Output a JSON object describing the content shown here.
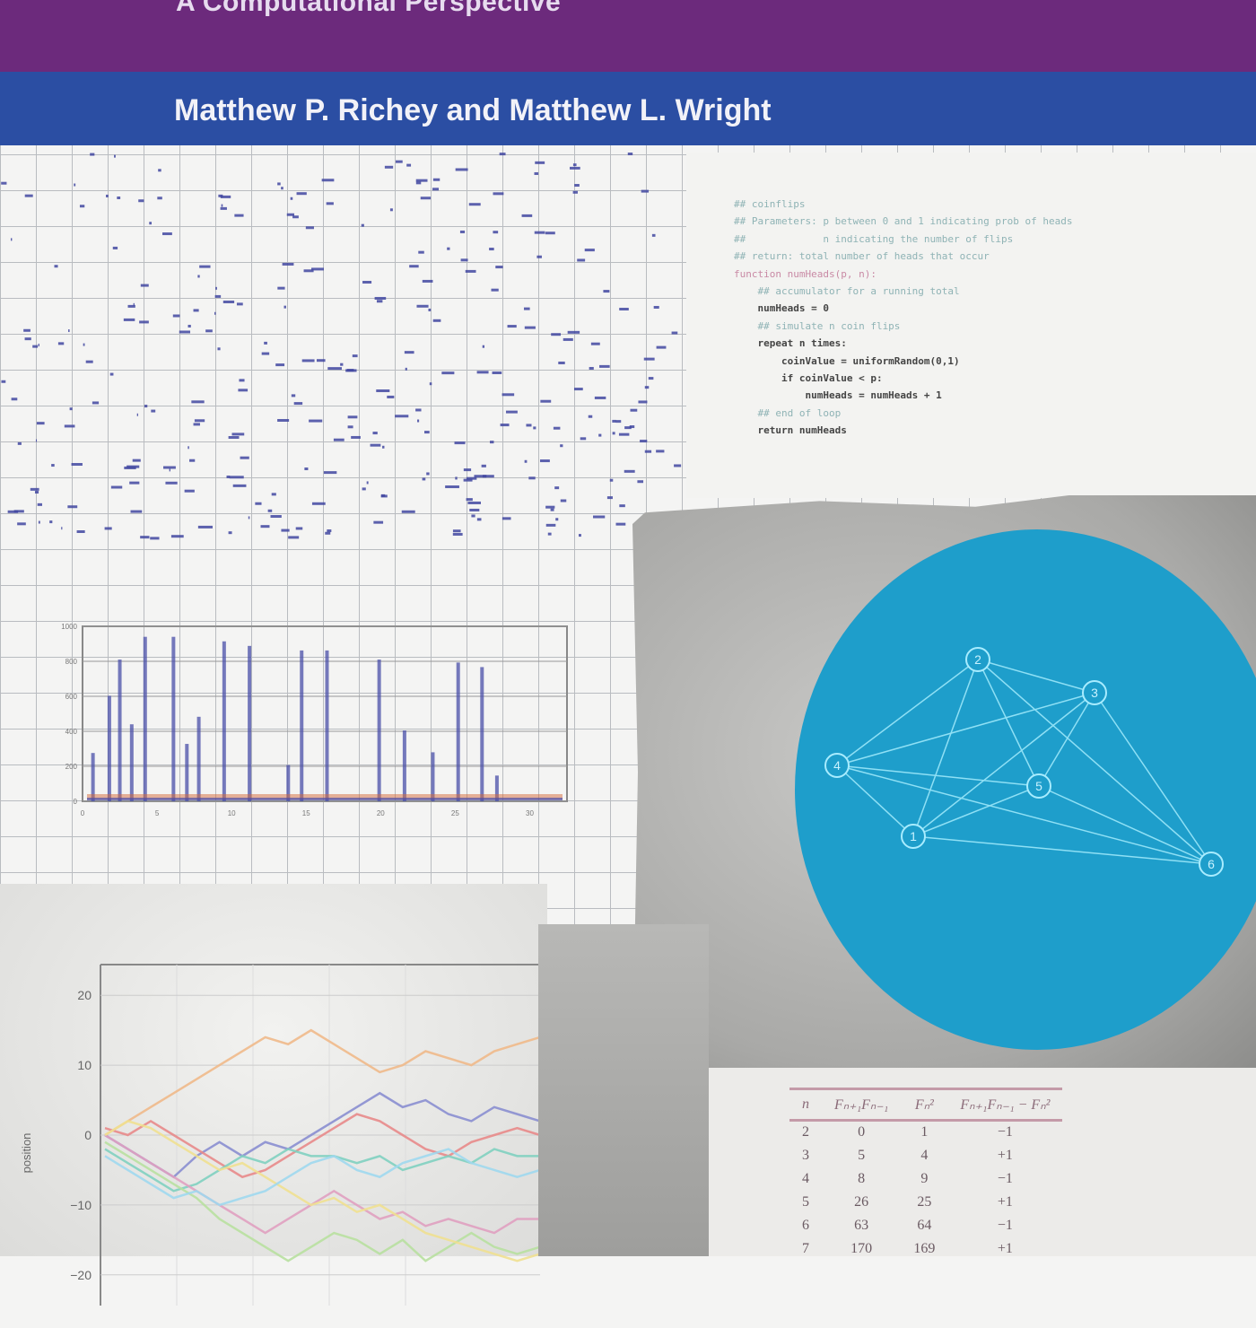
{
  "cover": {
    "subtitle": "A Computational Perspective",
    "authors": "Matthew P. Richey and Matthew L. Wright",
    "colors": {
      "title_band": "#6c2a7c",
      "author_band": "#2b4ea3",
      "circle": "#1e9ecb"
    }
  },
  "code": {
    "lines": [
      {
        "t": "## coinflips",
        "c": "cm"
      },
      {
        "t": "## Parameters: p between 0 and 1 indicating prob of heads",
        "c": "cm"
      },
      {
        "t": "##             n indicating the number of flips",
        "c": "cm"
      },
      {
        "t": "## return: total number of heads that occur",
        "c": "cm"
      },
      {
        "t": "function numHeads(p, n):",
        "c": "kw"
      },
      {
        "t": "    ## accumulator for a running total",
        "c": "cm"
      },
      {
        "t": "    numHeads = 0",
        "c": "bd"
      },
      {
        "t": "    ## simulate n coin flips",
        "c": "cm"
      },
      {
        "t": "    repeat n times:",
        "c": "bd"
      },
      {
        "t": "        coinValue = uniformRandom(0,1)",
        "c": "bd"
      },
      {
        "t": "        if coinValue < p:",
        "c": "bd"
      },
      {
        "t": "            numHeads = numHeads + 1",
        "c": "bd"
      },
      {
        "t": "    ## end of loop",
        "c": "cm"
      },
      {
        "t": "    return numHeads",
        "c": "bd"
      }
    ]
  },
  "graph": {
    "nodes": [
      {
        "id": "1"
      },
      {
        "id": "2"
      },
      {
        "id": "3"
      },
      {
        "id": "4"
      },
      {
        "id": "5"
      },
      {
        "id": "6"
      }
    ],
    "edges": [
      [
        "4",
        "2"
      ],
      [
        "4",
        "3"
      ],
      [
        "4",
        "5"
      ],
      [
        "4",
        "1"
      ],
      [
        "4",
        "6"
      ],
      [
        "2",
        "3"
      ],
      [
        "2",
        "5"
      ],
      [
        "2",
        "1"
      ],
      [
        "2",
        "6"
      ],
      [
        "3",
        "1"
      ],
      [
        "3",
        "5"
      ],
      [
        "5",
        "1"
      ],
      [
        "5",
        "6"
      ],
      [
        "1",
        "6"
      ],
      [
        "3",
        "6"
      ]
    ]
  },
  "table": {
    "headers": [
      "n",
      "Fₙ₊₁Fₙ₋₁",
      "Fₙ²",
      "Fₙ₊₁Fₙ₋₁ − Fₙ²"
    ],
    "rows": [
      [
        "2",
        "0",
        "1",
        "−1"
      ],
      [
        "3",
        "5",
        "4",
        "+1"
      ],
      [
        "4",
        "8",
        "9",
        "−1"
      ],
      [
        "5",
        "26",
        "25",
        "+1"
      ],
      [
        "6",
        "63",
        "64",
        "−1"
      ],
      [
        "7",
        "170",
        "169",
        "+1"
      ]
    ]
  },
  "chart_data": [
    {
      "type": "bar",
      "title": "",
      "xlabel": "",
      "ylabel": "",
      "x": [
        0.7,
        1.8,
        2.5,
        3.3,
        4.2,
        6.1,
        7.0,
        7.8,
        9.5,
        11.2,
        13.8,
        14.7,
        16.4,
        19.9,
        21.6,
        23.5,
        25.2,
        26.8,
        27.8
      ],
      "values": [
        276,
        603,
        810,
        440,
        940,
        940,
        328,
        483,
        914,
        888,
        207,
        862,
        862,
        810,
        405,
        280,
        793,
        767,
        147
      ],
      "xlim": [
        0,
        32.5
      ],
      "ylim": [
        0,
        1000
      ],
      "xticks": [
        "0",
        "5",
        "10",
        "15",
        "20",
        "25",
        "30"
      ],
      "yticks": [
        "0",
        "200",
        "400",
        "600",
        "800",
        "1000"
      ],
      "grid": true,
      "color": "#4a4fa8",
      "baseline_color": "#d46a3a"
    },
    {
      "type": "line",
      "title": "",
      "xlabel": "",
      "ylabel": "position",
      "ylim": [
        -20,
        20
      ],
      "yticks": [
        "20",
        "10",
        "0",
        "−10",
        "−20"
      ],
      "grid": true,
      "series": [
        {
          "color": "#f0b98a",
          "values": [
            0,
            2,
            4,
            6,
            8,
            10,
            12,
            14,
            13,
            15,
            13,
            11,
            9,
            10,
            12,
            11,
            10,
            12,
            13,
            14
          ]
        },
        {
          "color": "#8a8ed0",
          "values": [
            0,
            -2,
            -4,
            -6,
            -3,
            -1,
            -3,
            -1,
            -2,
            0,
            2,
            4,
            6,
            4,
            5,
            3,
            2,
            4,
            3,
            2
          ]
        },
        {
          "color": "#e88a8a",
          "values": [
            1,
            0,
            2,
            0,
            -2,
            -4,
            -6,
            -5,
            -3,
            -1,
            1,
            3,
            2,
            0,
            -2,
            -3,
            -1,
            0,
            1,
            0
          ]
        },
        {
          "color": "#7fd0c0",
          "values": [
            -2,
            -4,
            -6,
            -8,
            -7,
            -5,
            -3,
            -4,
            -2,
            -3,
            -3,
            -4,
            -3,
            -5,
            -4,
            -3,
            -4,
            -2,
            -3,
            -3
          ]
        },
        {
          "color": "#e0a0c0",
          "values": [
            0,
            -2,
            -4,
            -6,
            -8,
            -10,
            -12,
            -14,
            -12,
            -10,
            -8,
            -10,
            -12,
            -11,
            -13,
            -12,
            -13,
            -14,
            -12,
            -12
          ]
        },
        {
          "color": "#b8e0a0",
          "values": [
            -1,
            -3,
            -5,
            -7,
            -9,
            -12,
            -14,
            -16,
            -18,
            -16,
            -14,
            -15,
            -17,
            -15,
            -18,
            -16,
            -14,
            -16,
            -17,
            -16
          ]
        },
        {
          "color": "#f0e090",
          "values": [
            0,
            2,
            1,
            -1,
            -3,
            -5,
            -4,
            -6,
            -8,
            -10,
            -9,
            -11,
            -10,
            -12,
            -14,
            -15,
            -16,
            -17,
            -18,
            -17
          ]
        },
        {
          "color": "#9fd8ee",
          "values": [
            -3,
            -5,
            -7,
            -9,
            -8,
            -10,
            -9,
            -8,
            -6,
            -4,
            -3,
            -5,
            -6,
            -4,
            -3,
            -2,
            -4,
            -5,
            -6,
            -5
          ]
        }
      ]
    }
  ]
}
